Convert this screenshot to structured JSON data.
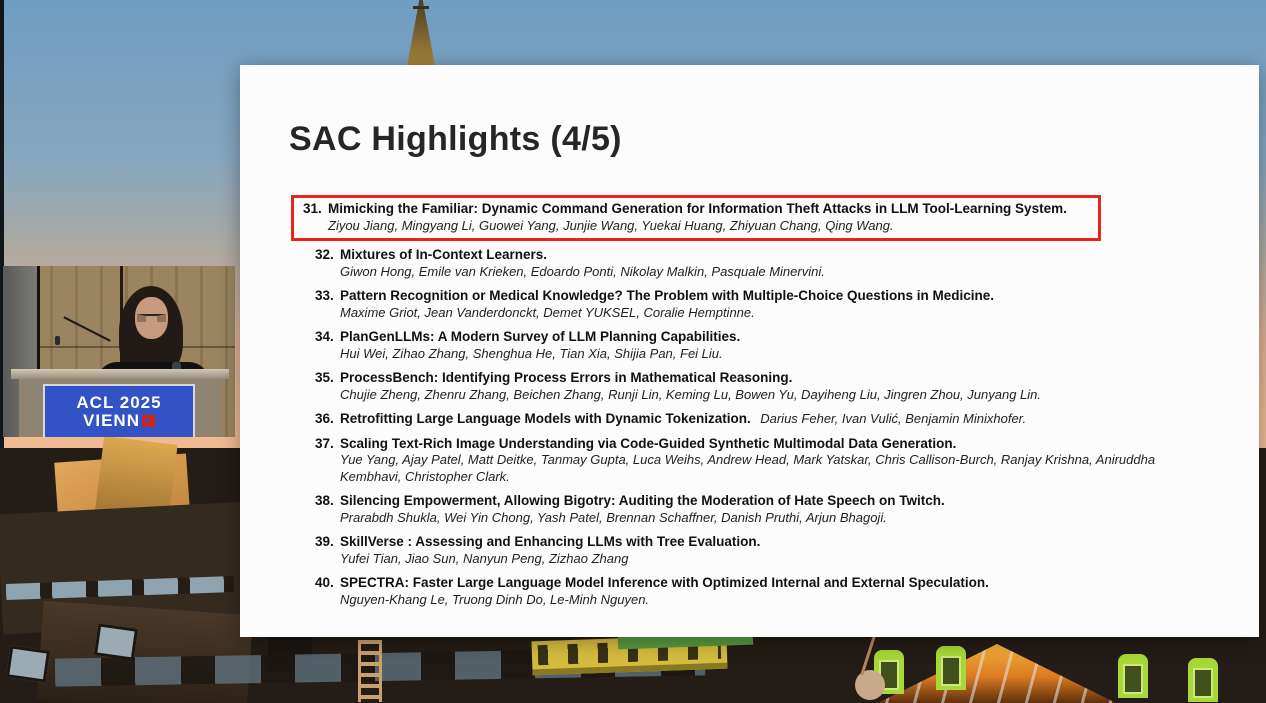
{
  "slide": {
    "title": "SAC Highlights (4/5)",
    "items": [
      {
        "num": "31.",
        "title": "Mimicking the Familiar: Dynamic Command Generation for Information Theft Attacks in LLM Tool-Learning System.",
        "authors": "Ziyou Jiang, Mingyang Li, Guowei Yang, Junjie Wang, Yuekai Huang, Zhiyuan Chang, Qing Wang.",
        "highlighted": true
      },
      {
        "num": "32.",
        "title": "Mixtures of In-Context Learners.",
        "authors": "Giwon Hong, Emile van Krieken, Edoardo Ponti, Nikolay Malkin, Pasquale Minervini."
      },
      {
        "num": "33.",
        "title": "Pattern Recognition or Medical Knowledge? The Problem with Multiple-Choice Questions in Medicine.",
        "authors": "Maxime Griot, Jean Vanderdonckt, Demet YUKSEL, Coralie Hemptinne."
      },
      {
        "num": "34.",
        "title": "PlanGenLLMs: A Modern Survey of LLM Planning Capabilities.",
        "authors": "Hui Wei, Zihao Zhang, Shenghua He, Tian Xia, Shijia Pan, Fei Liu."
      },
      {
        "num": "35.",
        "title": "ProcessBench: Identifying Process Errors in Mathematical Reasoning.",
        "authors": "Chujie Zheng, Zhenru Zhang, Beichen Zhang, Runji Lin, Keming Lu, Bowen Yu, Dayiheng Liu, Jingren Zhou, Junyang Lin."
      },
      {
        "num": "36.",
        "title": "Retrofitting Large Language Models with Dynamic Tokenization.",
        "authors": "Darius Feher, Ivan Vulić, Benjamin Minixhofer.",
        "authors_inline": true
      },
      {
        "num": "37.",
        "title": "Scaling Text-Rich Image Understanding via Code-Guided Synthetic Multimodal Data Generation.",
        "authors": "Yue Yang, Ajay Patel, Matt Deitke, Tanmay Gupta, Luca Weihs, Andrew Head, Mark Yatskar, Chris Callison-Burch, Ranjay Krishna, Aniruddha Kembhavi, Christopher Clark."
      },
      {
        "num": "38.",
        "title": "Silencing Empowerment, Allowing Bigotry: Auditing the Moderation of Hate Speech on Twitch.",
        "authors": "Prarabdh Shukla, Wei Yin Chong, Yash Patel, Brennan Schaffner, Danish Pruthi, Arjun Bhagoji."
      },
      {
        "num": "39.",
        "title": "SkillVerse : Assessing and Enhancing LLMs with Tree Evaluation.",
        "authors": "Yufei Tian, Jiao Sun, Nanyun Peng, Zizhao Zhang"
      },
      {
        "num": "40.",
        "title": "SPECTRA: Faster Large Language Model Inference with Optimized Internal and External Speculation.",
        "authors": "Nguyen-Khang Le, Truong Dinh Do, Le-Minh Nguyen."
      }
    ]
  },
  "webcam": {
    "podium_sign": {
      "line1": "ACL 2025",
      "line2": "VIENN"
    }
  },
  "colors": {
    "highlight_box": "#e8251b",
    "podium_sign_bg": "#3352c5",
    "podium_logo_red": "#cf2318",
    "slide_bg": "#fcfcfc",
    "sky_top": "#6f9dc3",
    "sky_bottom": "#f2bc92",
    "roof_dark": "#241c16"
  }
}
